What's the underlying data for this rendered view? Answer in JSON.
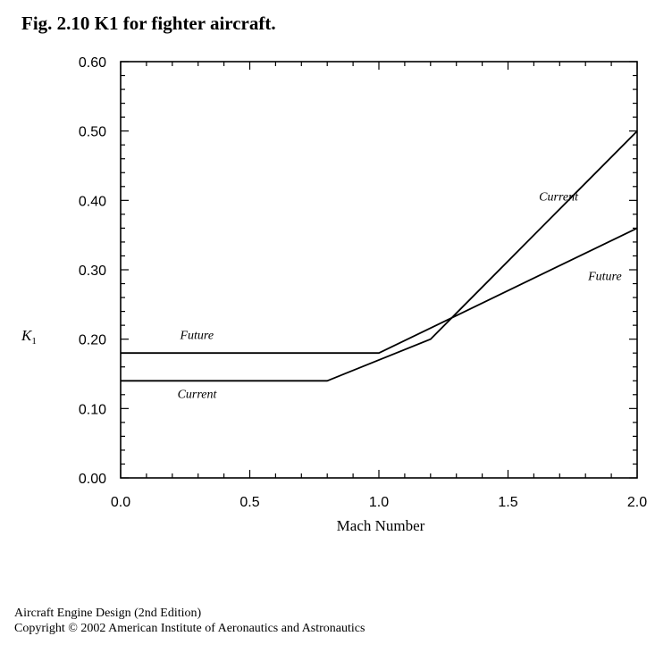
{
  "figure": {
    "title": "Fig. 2.10 K1 for fighter aircraft."
  },
  "chart_data": {
    "type": "line",
    "xlabel": "Mach Number",
    "ylabel_main": "K",
    "ylabel_sub": "1",
    "xlim": [
      0,
      2
    ],
    "ylim": [
      0,
      0.6
    ],
    "x_ticks": [
      "0.0",
      "0.5",
      "1.0",
      "1.5",
      "2.0"
    ],
    "y_ticks": [
      "0.00",
      "0.10",
      "0.20",
      "0.30",
      "0.40",
      "0.50",
      "0.60"
    ],
    "grid": false,
    "series": [
      {
        "name": "Future",
        "points": [
          [
            0.0,
            0.18
          ],
          [
            1.0,
            0.18
          ],
          [
            2.0,
            0.36
          ]
        ]
      },
      {
        "name": "Current",
        "points": [
          [
            0.0,
            0.14
          ],
          [
            0.8,
            0.14
          ],
          [
            1.2,
            0.2
          ],
          [
            2.0,
            0.5
          ]
        ]
      }
    ],
    "annotations": [
      {
        "text": "Future",
        "x": 0.23,
        "y": 0.2
      },
      {
        "text": "Current",
        "x": 0.22,
        "y": 0.115
      },
      {
        "text": "Current",
        "x": 1.62,
        "y": 0.4
      },
      {
        "text": "Future",
        "x": 1.81,
        "y": 0.285
      }
    ]
  },
  "footer": {
    "book": "Aircraft Engine Design (2nd Edition)",
    "copyright": "Copyright © 2002 American Institute of Aeronautics and Astronautics"
  }
}
